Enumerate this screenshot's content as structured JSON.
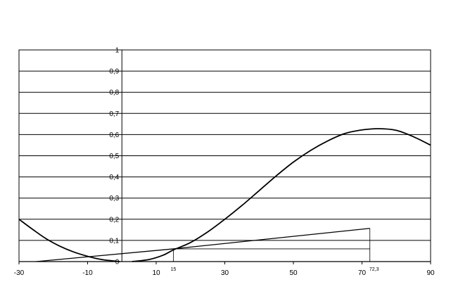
{
  "chart_data": {
    "type": "line",
    "xlim": [
      -30,
      90
    ],
    "ylim": [
      0,
      1
    ],
    "grid": true,
    "x_tick_labels": [
      "-30",
      "-10",
      "10",
      "30",
      "50",
      "70",
      "90"
    ],
    "x_ticks": [
      -30,
      -10,
      10,
      30,
      50,
      70,
      90
    ],
    "y_tick_labels": [
      "1",
      "0,9",
      "0,8",
      "0,7",
      "0,6",
      "0,5",
      "0,4",
      "0,3",
      "0,2",
      "0,1",
      "0"
    ],
    "y_ticks": [
      1,
      0.9,
      0.8,
      0.7,
      0.6,
      0.5,
      0.4,
      0.3,
      0.2,
      0.1,
      0
    ],
    "annotations": [
      {
        "text": "15",
        "x": 15
      },
      {
        "text": "72,3",
        "x": 72.3
      }
    ],
    "series": [
      {
        "x": [
          -30,
          -26,
          -22,
          -18,
          -14,
          -10,
          -6,
          -3,
          -0.6
        ],
        "y": [
          0.2,
          0.152,
          0.107,
          0.072,
          0.045,
          0.025,
          0.01,
          0.004,
          0.0
        ]
      },
      {
        "x": [
          3,
          8,
          12,
          15,
          20,
          25,
          30,
          35,
          40,
          45,
          50,
          55,
          60,
          65,
          70,
          75,
          80,
          85,
          90
        ],
        "y": [
          0.0,
          0.01,
          0.03,
          0.055,
          0.09,
          0.14,
          0.2,
          0.265,
          0.335,
          0.405,
          0.47,
          0.525,
          0.57,
          0.605,
          0.622,
          0.628,
          0.62,
          0.59,
          0.55
        ]
      },
      {
        "x": [
          -25,
          15,
          72.3
        ],
        "y": [
          0.0,
          0.06,
          0.157
        ]
      }
    ],
    "reference_lines": {
      "horizontal_y": 0.06,
      "horizontal_x_range": [
        15,
        72.3
      ],
      "vertical_x": [
        15,
        72.3
      ]
    }
  }
}
